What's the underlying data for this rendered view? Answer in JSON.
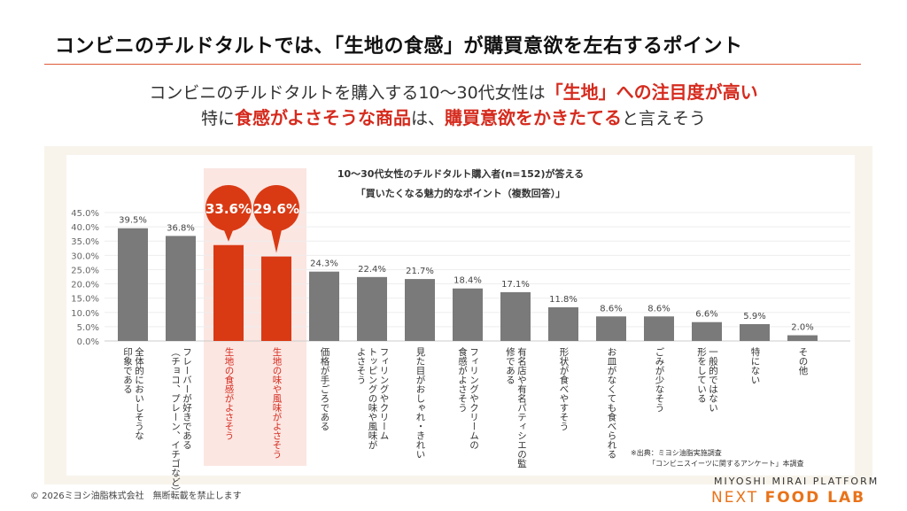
{
  "header": {
    "title": "コンビニのチルドタルトでは、「生地の食感」が購買意欲を左右するポイント"
  },
  "lead": {
    "l1a": "コンビニのチルドタルトを購入する10～30代女性は",
    "l1b": "「生地」への注目度が高い",
    "l2a": "特に",
    "l2b": "食感がよさそうな商品",
    "l2c": "は、",
    "l2d": "購買意欲をかきたてる",
    "l2e": "と言えそう"
  },
  "chart_data": {
    "type": "bar",
    "title": "10～30代女性のチルドタルト購入者(n=152)が答える",
    "subtitle": "「買いたくなる魅力的なポイント（複数回答）」",
    "categories": [
      "全体的においしそうな\n印象である",
      "フレーバーが好きである\n（チョコ、プレーン、イチゴなど）",
      "生地の食感がよさそう",
      "生地の味や風味がよさそう",
      "価格が手ごろである",
      "フィリングやクリーム\nトッピングの味や風味が\nよさそう",
      "見た目がおしゃれ・きれい",
      "フィリングやクリームの\n食感がよさそう",
      "有名店や有名パティシエの監\n修である",
      "形状が食べやすそう",
      "お皿がなくても食べられる",
      "ごみが少なそう",
      "一般的ではない\n形をしている",
      "特にない",
      "その他"
    ],
    "values": [
      39.5,
      36.8,
      33.6,
      29.6,
      24.3,
      22.4,
      21.7,
      18.4,
      17.1,
      11.8,
      8.6,
      8.6,
      6.6,
      5.9,
      2.0
    ],
    "highlighted": [
      2,
      3
    ],
    "ylim": [
      0,
      45
    ],
    "yticks": [
      "0.0%",
      "5.0%",
      "10.0%",
      "15.0%",
      "20.0%",
      "25.0%",
      "30.0%",
      "35.0%",
      "40.0%",
      "45.0%"
    ],
    "colors": {
      "default": "#7a7a7a",
      "highlight": "#d93a14",
      "highlight_bg": "#fbe6e2"
    }
  },
  "source": "※出典：ミヨシ油脂実施調査\n　　　「コンビニスイーツに関するアンケート」本調査",
  "footer": {
    "copyright": "© 2026ミヨシ油脂株式会社　無断転載を禁止します",
    "brand_top": "MIYOSHI MIRAI PLATFORM",
    "brand_a": "NEXT ",
    "brand_b": "FOOD LAB"
  }
}
